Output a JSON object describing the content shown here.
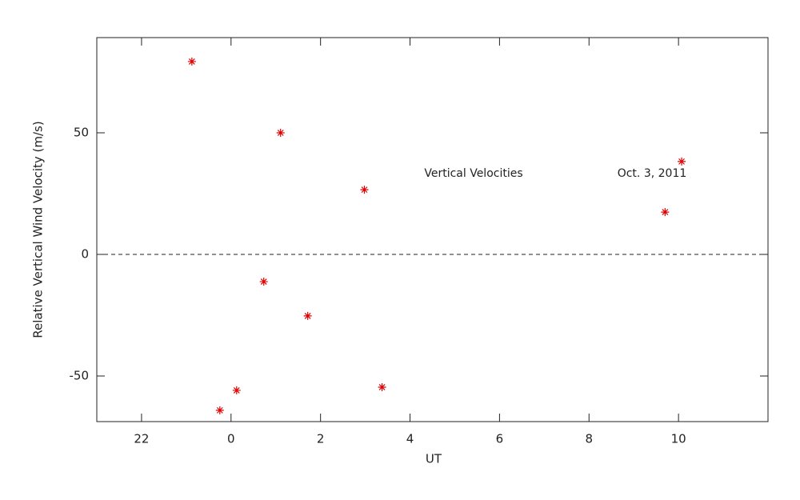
{
  "chart_data": {
    "type": "scatter",
    "xlabel": "UT",
    "ylabel": "Relative Vertical Wind Velocity (m/s)",
    "x": [
      -0.875,
      1.107,
      0.732,
      1.714,
      2.98,
      3.375,
      -0.25,
      0.125,
      9.7,
      10.07
    ],
    "values": [
      79.3,
      50,
      -11.2,
      -25.3,
      26.6,
      -54.6,
      -64.1,
      -55.9,
      17.4,
      38.2
    ],
    "color": "#e00000",
    "xlim": [
      -3,
      12
    ],
    "xticks": [
      {
        "value": -2,
        "label": "22"
      },
      0,
      2,
      4,
      6,
      8,
      10
    ],
    "ylim": [
      -68.75,
      89.14
    ],
    "yticks": [
      -50,
      0,
      50
    ],
    "zero_line": 0,
    "annotations": [
      "Vertical Velocities",
      "Oct. 3, 2011"
    ]
  }
}
